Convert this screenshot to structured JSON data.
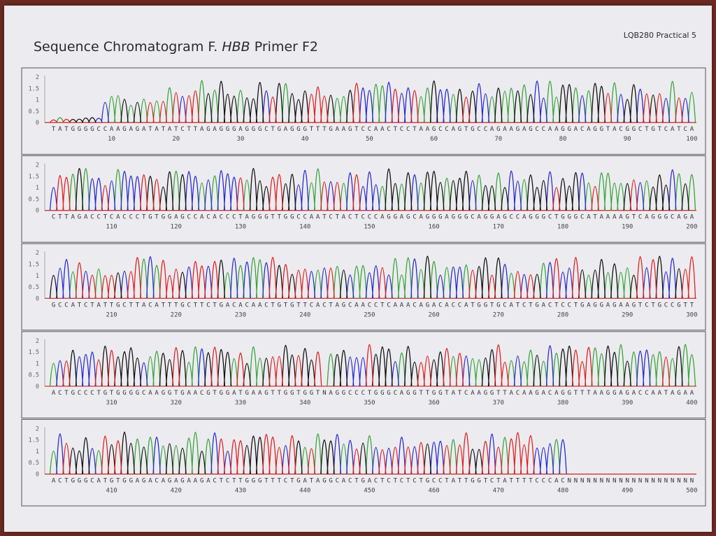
{
  "page": {
    "title_prefix": "Sequence Chromatogram F. ",
    "title_gene": "HBB",
    "title_suffix": " Primer F2",
    "course_label": "LQB280 Practical 5"
  },
  "colors": {
    "A": "#3aa33a",
    "C": "#2a2ad0",
    "G": "#111111",
    "T": "#e02020",
    "N": "#cc2222",
    "border": "#555555"
  },
  "chart_data": {
    "type": "line",
    "title": "Sequence Chromatogram F. HBB Primer F2",
    "xlabel": "",
    "ylabel": "",
    "ylim": [
      0,
      2
    ],
    "y_ticks": [
      "0",
      "0.5",
      "1",
      "1.5",
      "2"
    ],
    "series": [
      {
        "name": "A",
        "color": "#3aa33a"
      },
      {
        "name": "C",
        "color": "#2a2ad0"
      },
      {
        "name": "G",
        "color": "#111111"
      },
      {
        "name": "T",
        "color": "#e02020"
      }
    ],
    "rows": [
      {
        "sequence": "TATGGGGCCAAGAGATATATCTTAGAGGGAGGGCTGAGGGTTTGAAGTCCAACTCCTAAGCCAGTGCCAGAAGAGCCAAGGACAGGTACGGCTGTCATCA",
        "ticks": [
          "10",
          "20",
          "30",
          "40",
          "50",
          "60",
          "70",
          "80",
          "90",
          "100"
        ],
        "tick_positions": [
          10,
          20,
          30,
          40,
          50,
          60,
          70,
          80,
          90,
          100
        ]
      },
      {
        "sequence": "CTTAGACCTCACCCTGTGGAGCCACACCCTAGGGTTGGCCAATCTACTCCCAGGAGCAGGGAGGGCAGGAGCCAGGGCTGGGCATAAAAGTCAGGGCAGA",
        "ticks": [
          "110",
          "120",
          "130",
          "140",
          "150",
          "160",
          "170",
          "180",
          "190",
          "200"
        ],
        "tick_positions": [
          110,
          120,
          130,
          140,
          150,
          160,
          170,
          180,
          190,
          200
        ]
      },
      {
        "sequence": "GCCATCTATTGCTTACATTTGCTTCTGACACAACTGTGTTCACTAGCAACCTCAAACAGACACCATGGTGCATCTGACTCCTGAGGAGAAGTCTGCCGTT",
        "ticks": [
          "210",
          "220",
          "230",
          "240",
          "250",
          "260",
          "270",
          "280",
          "290",
          "300"
        ],
        "tick_positions": [
          210,
          220,
          230,
          240,
          250,
          260,
          270,
          280,
          290,
          300
        ]
      },
      {
        "sequence": "ACTGCCCTGTGGGGCAAGGTGAACGTGGATGAAGTTGGTGGTNAGGCCCTGGGCAGGTTGGTATCAAGGTTACAAGACAGGTTTAAGGAGACCAATAGAA",
        "ticks": [
          "310",
          "320",
          "330",
          "340",
          "350",
          "360",
          "370",
          "380",
          "390",
          "400"
        ],
        "tick_positions": [
          310,
          320,
          330,
          340,
          350,
          360,
          370,
          380,
          390,
          400
        ]
      },
      {
        "sequence": "ACTGGGCATGTGGAGACAGAGAAGACTCTTGGGTTTCTGATAGGCACTGACTCTCTCTGCCTATTGGTCTATTTTCCCACNNNNNNNNNNNNNNNNNNNN",
        "ticks": [
          "410",
          "420",
          "430",
          "440",
          "450",
          "460",
          "470",
          "480",
          "490",
          "500"
        ],
        "tick_positions": [
          410,
          420,
          430,
          440,
          450,
          460,
          470,
          480,
          490,
          500
        ]
      }
    ]
  }
}
